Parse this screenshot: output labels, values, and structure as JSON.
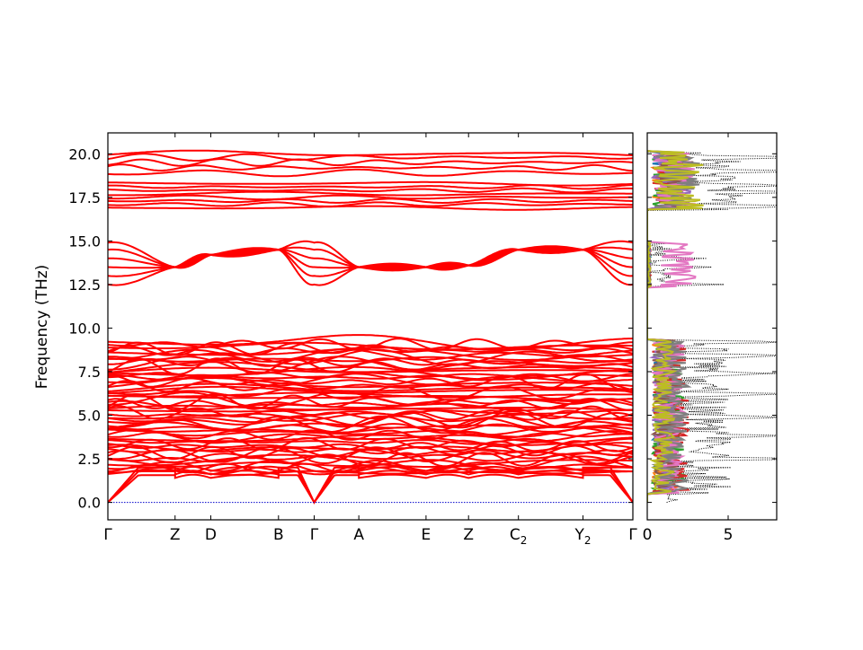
{
  "chart_data": [
    {
      "type": "line",
      "panel": "band-structure",
      "ylabel": "Frequency (THz)",
      "ylim": [
        -1.0,
        21.2
      ],
      "grid": false,
      "line_color": "#ff0000",
      "zero_line_color": "#0000cc",
      "yticks": [
        0.0,
        2.5,
        5.0,
        7.5,
        10.0,
        12.5,
        15.0,
        17.5,
        20.0
      ],
      "ytick_labels": [
        "0.0",
        "2.5",
        "5.0",
        "7.5",
        "10.0",
        "12.5",
        "15.0",
        "17.5",
        "20.0"
      ],
      "kpath": [
        {
          "label": "Γ",
          "sub": "",
          "pos": 0.0
        },
        {
          "label": "Z",
          "sub": "",
          "pos": 0.128
        },
        {
          "label": "D",
          "sub": "",
          "pos": 0.196
        },
        {
          "label": "B",
          "sub": "",
          "pos": 0.325
        },
        {
          "label": "Γ",
          "sub": "",
          "pos": 0.393
        },
        {
          "label": "A",
          "sub": "",
          "pos": 0.478
        },
        {
          "label": "E",
          "sub": "",
          "pos": 0.606
        },
        {
          "label": "Z",
          "sub": "",
          "pos": 0.687
        },
        {
          "label": "C",
          "sub": "2",
          "pos": 0.782
        },
        {
          "label": "Y",
          "sub": "2",
          "pos": 0.905
        },
        {
          "label": "Γ",
          "sub": "",
          "pos": 1.0
        }
      ],
      "bands": {
        "acoustic_max": 2.0,
        "low_group_range": [
          1.2,
          9.3
        ],
        "mid_group": [
          12.5,
          13.0,
          13.5,
          14.0,
          14.5,
          14.9
        ],
        "mid_group_nodes": [
          13.5,
          13.5,
          14.2,
          14.5,
          14.4,
          13.5,
          13.5,
          13.6,
          14.5
        ],
        "high_group_a": [
          16.9,
          17.1,
          17.3,
          17.5,
          17.7,
          17.9,
          18.1,
          18.3
        ],
        "high_group_b": [
          18.9,
          19.2,
          19.5,
          19.8,
          20.0
        ]
      }
    },
    {
      "type": "line",
      "panel": "density-of-states",
      "xlim": [
        0,
        8
      ],
      "xticks": [
        0,
        5
      ],
      "xtick_labels": [
        "0",
        "5"
      ],
      "ylim": [
        -1.0,
        21.2
      ],
      "total_dos_style": "dotted",
      "total_dos_color": "#000000",
      "partial_colors": [
        "#1f77b4",
        "#ff7f0e",
        "#2ca02c",
        "#d62728",
        "#9467bd",
        "#8c564b",
        "#e377c2",
        "#7f7f7f",
        "#bcbd22"
      ],
      "total_dos_peaks": [
        {
          "freq": 2.5,
          "value": 7.8
        },
        {
          "freq": 3.8,
          "value": 7.6
        },
        {
          "freq": 4.9,
          "value": 8.0
        },
        {
          "freq": 6.2,
          "value": 7.9
        },
        {
          "freq": 7.4,
          "value": 7.2
        },
        {
          "freq": 8.4,
          "value": 7.6
        },
        {
          "freq": 9.2,
          "value": 8.0
        },
        {
          "freq": 12.5,
          "value": 3.8
        },
        {
          "freq": 13.5,
          "value": 3.4
        },
        {
          "freq": 14.0,
          "value": 3.6
        },
        {
          "freq": 17.0,
          "value": 7.5
        },
        {
          "freq": 17.8,
          "value": 7.9
        },
        {
          "freq": 18.2,
          "value": 8.0
        },
        {
          "freq": 19.0,
          "value": 8.0
        },
        {
          "freq": 19.8,
          "value": 8.0
        }
      ]
    }
  ]
}
